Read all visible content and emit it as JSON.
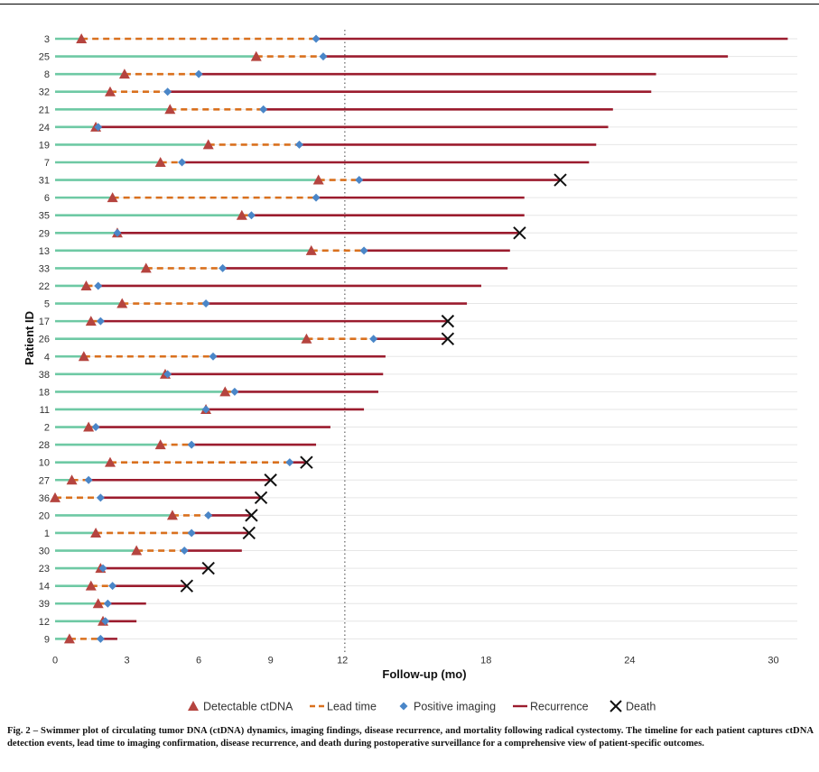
{
  "chart_data": {
    "type": "swimmer",
    "xlabel": "Follow-up (mo)",
    "ylabel": "Patient ID",
    "xlim": [
      0,
      31
    ],
    "xticks": [
      0,
      3,
      6,
      9,
      12,
      18,
      24,
      30
    ],
    "xtick_labels": [
      "0",
      "3",
      "6",
      "9",
      "12",
      "18",
      "24",
      "30"
    ],
    "vline": 12.1,
    "grid": "horizontal",
    "legend_position": "bottom",
    "legend": [
      {
        "key": "ctdna",
        "label": "Detectable ctDNA",
        "color": "#b5443f"
      },
      {
        "key": "lead",
        "label": "Lead time",
        "color": "#d9701e"
      },
      {
        "key": "imaging",
        "label": "Positive imaging",
        "color": "#4a86c8"
      },
      {
        "key": "recurrence",
        "label": "Recurrence",
        "color": "#9b1c2e"
      },
      {
        "key": "death",
        "label": "Death",
        "color": "#111111"
      }
    ],
    "pre_ctdna_color": "#6ec9a4",
    "patients": [
      {
        "id": "3",
        "ctdna": 1.1,
        "imaging": 10.9,
        "end": 30.6,
        "death": false
      },
      {
        "id": "25",
        "ctdna": 8.4,
        "imaging": 11.2,
        "end": 28.1,
        "death": false
      },
      {
        "id": "8",
        "ctdna": 2.9,
        "imaging": 6.0,
        "end": 25.1,
        "death": false
      },
      {
        "id": "32",
        "ctdna": 2.3,
        "imaging": 4.7,
        "end": 24.9,
        "death": false
      },
      {
        "id": "21",
        "ctdna": 4.8,
        "imaging": 8.7,
        "end": 23.3,
        "death": false
      },
      {
        "id": "24",
        "ctdna": 1.7,
        "imaging": 1.8,
        "end": 23.1,
        "death": false
      },
      {
        "id": "19",
        "ctdna": 6.4,
        "imaging": 10.2,
        "end": 22.6,
        "death": false
      },
      {
        "id": "7",
        "ctdna": 4.4,
        "imaging": 5.3,
        "end": 22.3,
        "death": false
      },
      {
        "id": "31",
        "ctdna": 11.0,
        "imaging": 12.7,
        "end": 21.1,
        "death": true
      },
      {
        "id": "6",
        "ctdna": 2.4,
        "imaging": 10.9,
        "end": 19.6,
        "death": false
      },
      {
        "id": "35",
        "ctdna": 7.8,
        "imaging": 8.2,
        "end": 19.6,
        "death": false
      },
      {
        "id": "29",
        "ctdna": 2.6,
        "imaging": 2.6,
        "end": 19.4,
        "death": true
      },
      {
        "id": "13",
        "ctdna": 10.7,
        "imaging": 12.9,
        "end": 19.0,
        "death": false
      },
      {
        "id": "33",
        "ctdna": 3.8,
        "imaging": 7.0,
        "end": 18.9,
        "death": false
      },
      {
        "id": "22",
        "ctdna": 1.3,
        "imaging": 1.8,
        "end": 17.8,
        "death": false
      },
      {
        "id": "5",
        "ctdna": 2.8,
        "imaging": 6.3,
        "end": 17.2,
        "death": false
      },
      {
        "id": "17",
        "ctdna": 1.5,
        "imaging": 1.9,
        "end": 16.4,
        "death": true
      },
      {
        "id": "26",
        "ctdna": 10.5,
        "imaging": 13.3,
        "end": 16.4,
        "death": true
      },
      {
        "id": "4",
        "ctdna": 1.2,
        "imaging": 6.6,
        "end": 13.8,
        "death": false
      },
      {
        "id": "38",
        "ctdna": 4.6,
        "imaging": 4.7,
        "end": 13.7,
        "death": false
      },
      {
        "id": "18",
        "ctdna": 7.1,
        "imaging": 7.5,
        "end": 13.5,
        "death": false
      },
      {
        "id": "11",
        "ctdna": 6.3,
        "imaging": 6.3,
        "end": 12.9,
        "death": false
      },
      {
        "id": "2",
        "ctdna": 1.4,
        "imaging": 1.7,
        "end": 11.5,
        "death": false
      },
      {
        "id": "28",
        "ctdna": 4.4,
        "imaging": 5.7,
        "end": 10.9,
        "death": false
      },
      {
        "id": "10",
        "ctdna": 2.3,
        "imaging": 9.8,
        "end": 10.5,
        "death": true
      },
      {
        "id": "27",
        "ctdna": 0.7,
        "imaging": 1.4,
        "end": 9.0,
        "death": true
      },
      {
        "id": "36",
        "ctdna": 0.0,
        "imaging": 1.9,
        "end": 8.6,
        "death": true
      },
      {
        "id": "20",
        "ctdna": 4.9,
        "imaging": 6.4,
        "end": 8.2,
        "death": true
      },
      {
        "id": "1",
        "ctdna": 1.7,
        "imaging": 5.7,
        "end": 8.1,
        "death": true
      },
      {
        "id": "30",
        "ctdna": 3.4,
        "imaging": 5.4,
        "end": 7.8,
        "death": false
      },
      {
        "id": "23",
        "ctdna": 1.9,
        "imaging": 2.0,
        "end": 6.4,
        "death": true
      },
      {
        "id": "14",
        "ctdna": 1.5,
        "imaging": 2.4,
        "end": 5.5,
        "death": true
      },
      {
        "id": "39",
        "ctdna": 1.8,
        "imaging": 2.2,
        "end": 3.8,
        "death": false
      },
      {
        "id": "12",
        "ctdna": 2.0,
        "imaging": 2.1,
        "end": 3.4,
        "death": false
      },
      {
        "id": "9",
        "ctdna": 0.6,
        "imaging": 1.9,
        "end": 2.6,
        "death": false
      }
    ]
  },
  "caption": {
    "label": "Fig. 2 –",
    "text": "Swimmer plot of circulating tumor DNA (ctDNA) dynamics, imaging findings, disease recurrence, and mortality following radical cystectomy. The timeline for each patient captures ctDNA detection events, lead time to imaging confirmation, disease recurrence, and death during postoperative surveillance for a comprehensive view of patient-specific outcomes."
  }
}
